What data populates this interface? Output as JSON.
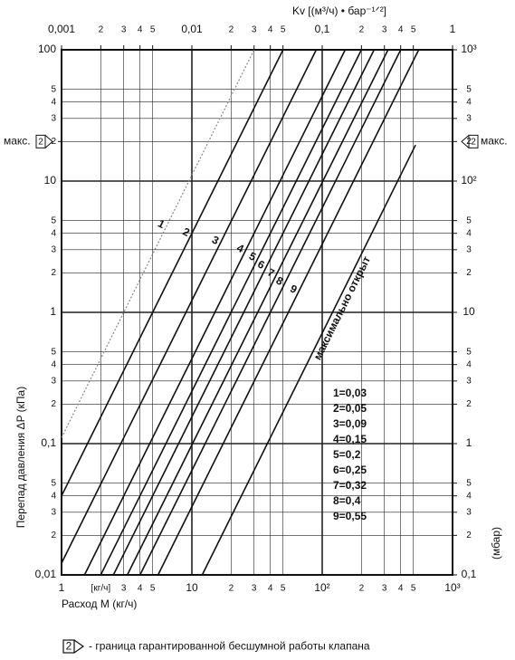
{
  "chart_data": {
    "type": "line",
    "x2_label": "Kv  [(м³/ч) • бар⁻¹ᐟ²]",
    "xlabel": "Расход M (кг/ч)",
    "ylabel": "Перепад давления  ΔP (кПа)",
    "y2label": "(мбар)",
    "log_x": true,
    "log_y": true,
    "grid": true,
    "xlim": [
      1,
      1000
    ],
    "ylim": [
      0.01,
      100
    ],
    "x2lim": [
      0.001,
      1
    ],
    "y2lim": [
      0.1,
      1000
    ],
    "xticks": [
      1,
      {
        "value": 2,
        "label": "[кг/ч]"
      },
      3,
      4,
      5,
      10,
      {
        "value": 20,
        "label": "2"
      },
      {
        "value": 30,
        "label": "3"
      },
      {
        "value": 40,
        "label": "4"
      },
      {
        "value": 50,
        "label": "5"
      },
      {
        "value": 100,
        "label": "10²"
      },
      {
        "value": 200,
        "label": "2"
      },
      {
        "value": 300,
        "label": "3"
      },
      {
        "value": 400,
        "label": "4"
      },
      {
        "value": 500,
        "label": "5"
      },
      {
        "value": 1000,
        "label": "10³"
      }
    ],
    "x2ticks": [
      {
        "value": 0.001,
        "label": "0,001"
      },
      {
        "value": 0.002,
        "label": "2"
      },
      {
        "value": 0.003,
        "label": "3"
      },
      {
        "value": 0.004,
        "label": "4"
      },
      {
        "value": 0.005,
        "label": "5"
      },
      {
        "value": 0.01,
        "label": "0,01"
      },
      {
        "value": 0.02,
        "label": "2"
      },
      {
        "value": 0.03,
        "label": "3"
      },
      {
        "value": 0.04,
        "label": "4"
      },
      {
        "value": 0.05,
        "label": "5"
      },
      {
        "value": 0.1,
        "label": "0,1"
      },
      {
        "value": 0.2,
        "label": "2"
      },
      {
        "value": 0.3,
        "label": "3"
      },
      {
        "value": 0.4,
        "label": "4"
      },
      {
        "value": 0.5,
        "label": "5"
      },
      1
    ],
    "yticks": [
      100,
      {
        "value": 50,
        "label": "5"
      },
      {
        "value": 40,
        "label": "4"
      },
      {
        "value": 30,
        "label": "3"
      },
      {
        "value": 20,
        "label": "2"
      },
      10,
      5,
      4,
      3,
      2,
      1,
      {
        "value": 0.5,
        "label": "5"
      },
      {
        "value": 0.4,
        "label": "4"
      },
      {
        "value": 0.3,
        "label": "3"
      },
      {
        "value": 0.2,
        "label": "2"
      },
      {
        "value": 0.1,
        "label": "0,1"
      },
      {
        "value": 0.05,
        "label": "5"
      },
      {
        "value": 0.04,
        "label": "4"
      },
      {
        "value": 0.03,
        "label": "3"
      },
      {
        "value": 0.02,
        "label": "2"
      },
      {
        "value": 0.01,
        "label": "0,01"
      }
    ],
    "y2ticks": [
      {
        "value": 1000,
        "label": "10³"
      },
      {
        "value": 500,
        "label": "5"
      },
      {
        "value": 400,
        "label": "4"
      },
      {
        "value": 300,
        "label": "3"
      },
      {
        "value": 200,
        "label": "2"
      },
      {
        "value": 100,
        "label": "10²"
      },
      {
        "value": 50,
        "label": "5"
      },
      {
        "value": 40,
        "label": "4"
      },
      {
        "value": 30,
        "label": "3"
      },
      {
        "value": 20,
        "label": "2"
      },
      10,
      5,
      4,
      3,
      2,
      1,
      {
        "value": 0.5,
        "label": "5"
      },
      {
        "value": 0.4,
        "label": "4"
      },
      {
        "value": 0.3,
        "label": "3"
      },
      {
        "value": 0.2,
        "label": "2"
      },
      {
        "value": 0.1,
        "label": "0,1"
      }
    ],
    "series": [
      {
        "name": "1",
        "color": "#888888",
        "style": "dotted",
        "x": [
          1,
          30
        ],
        "values": [
          0.111,
          100
        ]
      },
      {
        "name": "2",
        "color": "#111111",
        "x": [
          1,
          50
        ],
        "values": [
          0.04,
          100
        ]
      },
      {
        "name": "3",
        "color": "#111111",
        "x": [
          1,
          90
        ],
        "values": [
          0.0123,
          100
        ]
      },
      {
        "name": "4",
        "color": "#111111",
        "x": [
          1.5,
          150
        ],
        "values": [
          0.01,
          100
        ]
      },
      {
        "name": "5",
        "color": "#111111",
        "x": [
          2,
          200
        ],
        "values": [
          0.01,
          100
        ]
      },
      {
        "name": "6",
        "color": "#111111",
        "x": [
          2.5,
          250
        ],
        "values": [
          0.01,
          100
        ]
      },
      {
        "name": "7",
        "color": "#111111",
        "x": [
          3.2,
          320
        ],
        "values": [
          0.01,
          100
        ]
      },
      {
        "name": "8",
        "color": "#111111",
        "x": [
          4,
          400
        ],
        "values": [
          0.01,
          100
        ]
      },
      {
        "name": "9",
        "color": "#111111",
        "x": [
          5.5,
          550
        ],
        "values": [
          0.01,
          100
        ]
      },
      {
        "name": "максимально открыт",
        "color": "#111111",
        "x": [
          12,
          520
        ],
        "values": [
          0.01,
          18.8
        ]
      }
    ],
    "legend": [
      "1=0,03",
      "2=0,05",
      "3=0,09",
      "4=0,15",
      "5=0,2",
      "6=0,25",
      "7=0,32",
      "8=0,4",
      "9=0,55"
    ],
    "max_marker": {
      "value": 20,
      "label": "макс.",
      "icon": "2"
    },
    "footnote": {
      "icon": "2",
      "text": "- граница гарантированной бесшумной работы клапана"
    }
  }
}
